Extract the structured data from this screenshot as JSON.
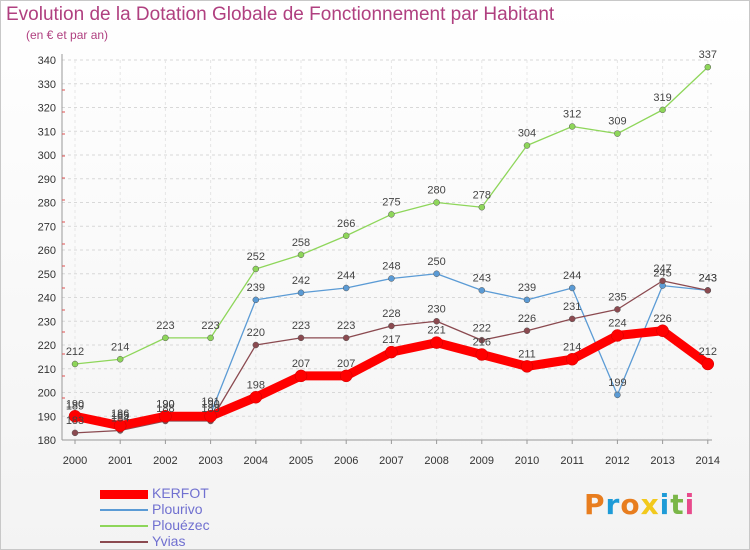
{
  "title": "Evolution de la Dotation Globale de Fonctionnement par Habitant",
  "subtitle": "(en € et par an)",
  "logo": {
    "text": [
      "P",
      "r",
      "o",
      "x",
      "i",
      "t",
      "i"
    ],
    "colors": [
      "#e87d1e",
      "#1e9bd7",
      "#e87d1e",
      "#f2c91c",
      "#1e9bd7",
      "#7ab648",
      "#e84a8c"
    ]
  },
  "chart_data": {
    "type": "line",
    "x": [
      "2000",
      "2001",
      "2002",
      "2003",
      "2004",
      "2005",
      "2006",
      "2007",
      "2008",
      "2009",
      "2010",
      "2011",
      "2012",
      "2013",
      "2014"
    ],
    "ylim": [
      180,
      340
    ],
    "yticks": [
      180,
      190,
      200,
      210,
      220,
      230,
      240,
      250,
      260,
      270,
      280,
      290,
      300,
      310,
      320,
      330,
      340
    ],
    "grid": true,
    "legend_position": "bottom-left",
    "series": [
      {
        "name": "KERFOT",
        "color": "#ff0000",
        "width": 9,
        "values": [
          190,
          186,
          190,
          190,
          198,
          207,
          207,
          217,
          221,
          216,
          211,
          214,
          224,
          226,
          212
        ],
        "labels": [
          "190",
          "186",
          "190",
          "190",
          "198",
          "207",
          "207",
          "217",
          "221",
          "216",
          "211",
          "214",
          "224",
          "226",
          "212"
        ]
      },
      {
        "name": "Plourivo",
        "color": "#5b9bd5",
        "width": 1.3,
        "values": [
          189,
          185,
          190,
          191,
          239,
          242,
          244,
          248,
          250,
          243,
          239,
          244,
          199,
          245,
          243
        ],
        "labels": [
          "189",
          "185",
          "190",
          "191",
          "239",
          "242",
          "244",
          "248",
          "250",
          "243",
          "239",
          "244",
          "199",
          "245",
          "243"
        ]
      },
      {
        "name": "Plouézec",
        "color": "#8ed65a",
        "width": 1.3,
        "values": [
          212,
          214,
          223,
          223,
          252,
          258,
          266,
          275,
          280,
          278,
          304,
          312,
          309,
          319,
          337
        ],
        "labels": [
          "212",
          "214",
          "223",
          "223",
          "252",
          "258",
          "266",
          "275",
          "280",
          "278",
          "304",
          "312",
          "309",
          "319",
          "337"
        ]
      },
      {
        "name": "Yvias",
        "color": "#8b4a50",
        "width": 1.3,
        "values": [
          183,
          184,
          188,
          188,
          220,
          223,
          223,
          228,
          230,
          222,
          226,
          231,
          235,
          247,
          243
        ],
        "labels": [
          "183",
          "184",
          "188",
          "188",
          "220",
          "223",
          "223",
          "228",
          "230",
          "222",
          "226",
          "231",
          "235",
          "247",
          "243"
        ]
      }
    ]
  }
}
